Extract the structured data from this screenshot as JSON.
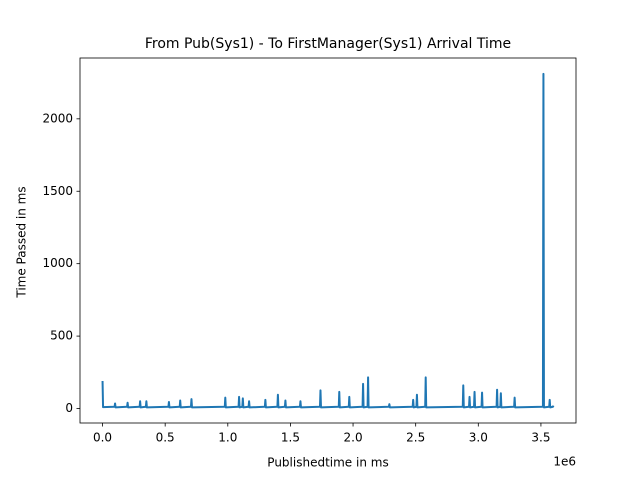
{
  "chart_data": {
    "type": "line",
    "title": "From Pub(Sys1) - To FirstManager(Sys1) Arrival Time",
    "x_label": "Publishedtime in ms",
    "y_label": "Time Passed in ms",
    "x_offset_label": "1e6",
    "color": "#1f77b4",
    "grid": false,
    "x": [
      0,
      4000,
      96000,
      100000,
      104000,
      196000,
      200000,
      204000,
      296000,
      300000,
      304000,
      346000,
      350000,
      354000,
      526000,
      530000,
      534000,
      616000,
      620000,
      624000,
      706000,
      710000,
      714000,
      976000,
      980000,
      984000,
      1086000,
      1090000,
      1094000,
      1116000,
      1120000,
      1124000,
      1166000,
      1170000,
      1174000,
      1296000,
      1300000,
      1304000,
      1396000,
      1400000,
      1404000,
      1456000,
      1460000,
      1464000,
      1576000,
      1580000,
      1584000,
      1736000,
      1740000,
      1744000,
      1886000,
      1890000,
      1894000,
      1966000,
      1970000,
      1974000,
      2076000,
      2080000,
      2084000,
      2116000,
      2120000,
      2124000,
      2286000,
      2290000,
      2294000,
      2476000,
      2480000,
      2484000,
      2506000,
      2510000,
      2514000,
      2576000,
      2580000,
      2584000,
      2876000,
      2880000,
      2884000,
      2926000,
      2930000,
      2934000,
      2966000,
      2970000,
      2974000,
      3026000,
      3030000,
      3034000,
      3146000,
      3150000,
      3154000,
      3176000,
      3180000,
      3184000,
      3286000,
      3290000,
      3294000,
      3516000,
      3520000,
      3524000,
      3566000,
      3570000,
      3574000,
      3596000,
      3600000
    ],
    "values": [
      190,
      10,
      12,
      35,
      8,
      12,
      40,
      8,
      12,
      50,
      8,
      12,
      50,
      8,
      12,
      45,
      8,
      12,
      55,
      8,
      12,
      65,
      8,
      12,
      75,
      8,
      12,
      80,
      8,
      12,
      70,
      8,
      12,
      50,
      8,
      12,
      60,
      8,
      12,
      95,
      8,
      12,
      55,
      8,
      12,
      50,
      8,
      12,
      125,
      8,
      12,
      115,
      8,
      12,
      80,
      8,
      12,
      170,
      8,
      12,
      215,
      8,
      12,
      30,
      8,
      12,
      60,
      8,
      12,
      95,
      8,
      12,
      215,
      8,
      12,
      160,
      8,
      12,
      80,
      8,
      12,
      115,
      8,
      12,
      110,
      8,
      12,
      130,
      8,
      12,
      105,
      8,
      12,
      75,
      8,
      12,
      2310,
      8,
      12,
      60,
      8,
      12,
      20
    ],
    "xlim": [
      -180000,
      3780000
    ],
    "ylim": [
      -100,
      2420
    ],
    "xticks": [
      {
        "value": 0,
        "label": "0.0"
      },
      {
        "value": 500000,
        "label": "0.5"
      },
      {
        "value": 1000000,
        "label": "1.0"
      },
      {
        "value": 1500000,
        "label": "1.5"
      },
      {
        "value": 2000000,
        "label": "2.0"
      },
      {
        "value": 2500000,
        "label": "2.5"
      },
      {
        "value": 3000000,
        "label": "3.0"
      },
      {
        "value": 3500000,
        "label": "3.5"
      }
    ],
    "yticks": [
      0,
      500,
      1000,
      1500,
      2000
    ]
  }
}
